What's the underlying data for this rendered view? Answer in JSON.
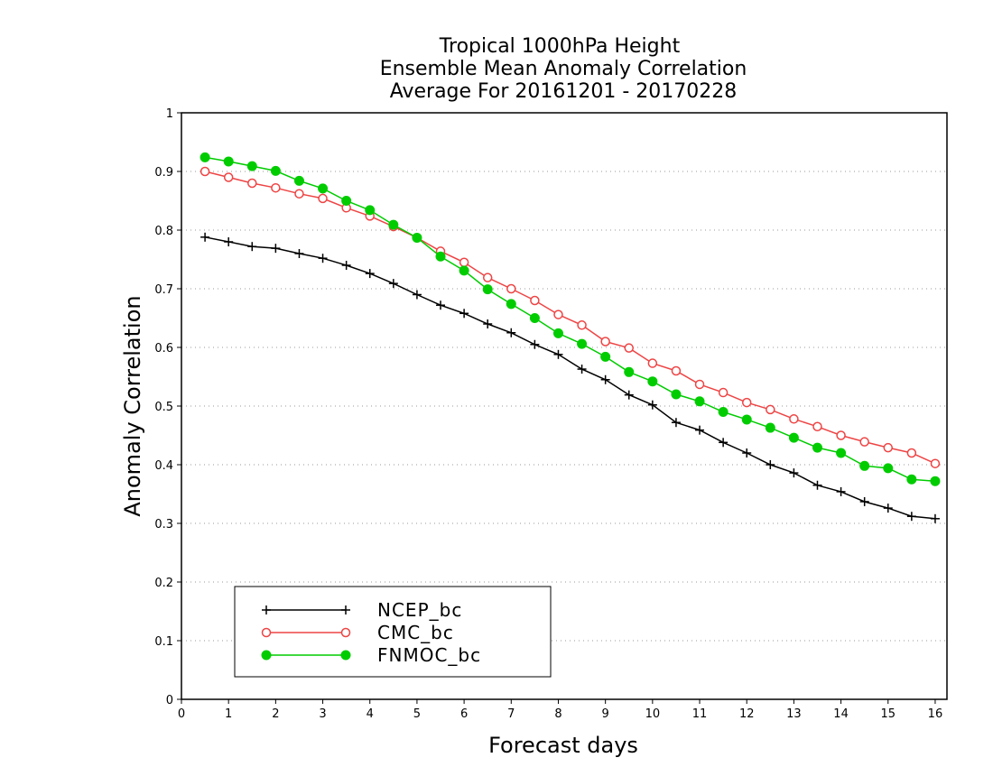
{
  "chart_data": {
    "type": "line",
    "title": [
      "Tropical 1000hPa Height",
      "Ensemble Mean Anomaly Correlation",
      "Average For 20161201 - 20170228"
    ],
    "xlabel": "Forecast days",
    "ylabel": "Anomaly Correlation",
    "xlim": [
      0,
      16.25
    ],
    "ylim": [
      0,
      1
    ],
    "xticks": [
      "0",
      "1",
      "2",
      "3",
      "4",
      "5",
      "6",
      "7",
      "8",
      "9",
      "10",
      "11",
      "12",
      "13",
      "14",
      "15",
      "16"
    ],
    "yticks": [
      "0",
      "0.1",
      "0.2",
      "0.3",
      "0.4",
      "0.5",
      "0.6",
      "0.7",
      "0.8",
      "0.9",
      "1"
    ],
    "grid": "horizontal dotted",
    "legend_position": "bottom-left",
    "x": [
      0.5,
      1,
      1.5,
      2,
      2.5,
      3,
      3.5,
      4,
      4.5,
      5,
      5.5,
      6,
      6.5,
      7,
      7.5,
      8,
      8.5,
      9,
      9.5,
      10,
      10.5,
      11,
      11.5,
      12,
      12.5,
      13,
      13.5,
      14,
      14.5,
      15,
      15.5,
      16
    ],
    "series": [
      {
        "name": "NCEP_bc",
        "color": "#000000",
        "marker": "plus",
        "values": [
          0.788,
          0.78,
          0.772,
          0.769,
          0.76,
          0.752,
          0.74,
          0.726,
          0.709,
          0.69,
          0.672,
          0.658,
          0.64,
          0.625,
          0.605,
          0.588,
          0.563,
          0.545,
          0.519,
          0.502,
          0.472,
          0.459,
          0.438,
          0.42,
          0.4,
          0.386,
          0.365,
          0.354,
          0.337,
          0.326,
          0.312,
          0.308
        ]
      },
      {
        "name": "CMC_bc",
        "color": "#ee4444",
        "marker": "open-circle",
        "values": [
          0.9,
          0.89,
          0.88,
          0.872,
          0.862,
          0.854,
          0.838,
          0.824,
          0.806,
          0.787,
          0.764,
          0.745,
          0.719,
          0.7,
          0.68,
          0.656,
          0.638,
          0.61,
          0.599,
          0.573,
          0.56,
          0.537,
          0.523,
          0.506,
          0.494,
          0.478,
          0.465,
          0.45,
          0.439,
          0.429,
          0.42,
          0.402
        ]
      },
      {
        "name": "FNMOC_bc",
        "color": "#00cc00",
        "marker": "filled-circle",
        "values": [
          0.924,
          0.917,
          0.909,
          0.901,
          0.884,
          0.871,
          0.85,
          0.834,
          0.809,
          0.787,
          0.755,
          0.731,
          0.699,
          0.674,
          0.65,
          0.624,
          0.606,
          0.584,
          0.558,
          0.542,
          0.52,
          0.508,
          0.49,
          0.477,
          0.463,
          0.446,
          0.429,
          0.42,
          0.398,
          0.394,
          0.375,
          0.372
        ]
      }
    ]
  }
}
